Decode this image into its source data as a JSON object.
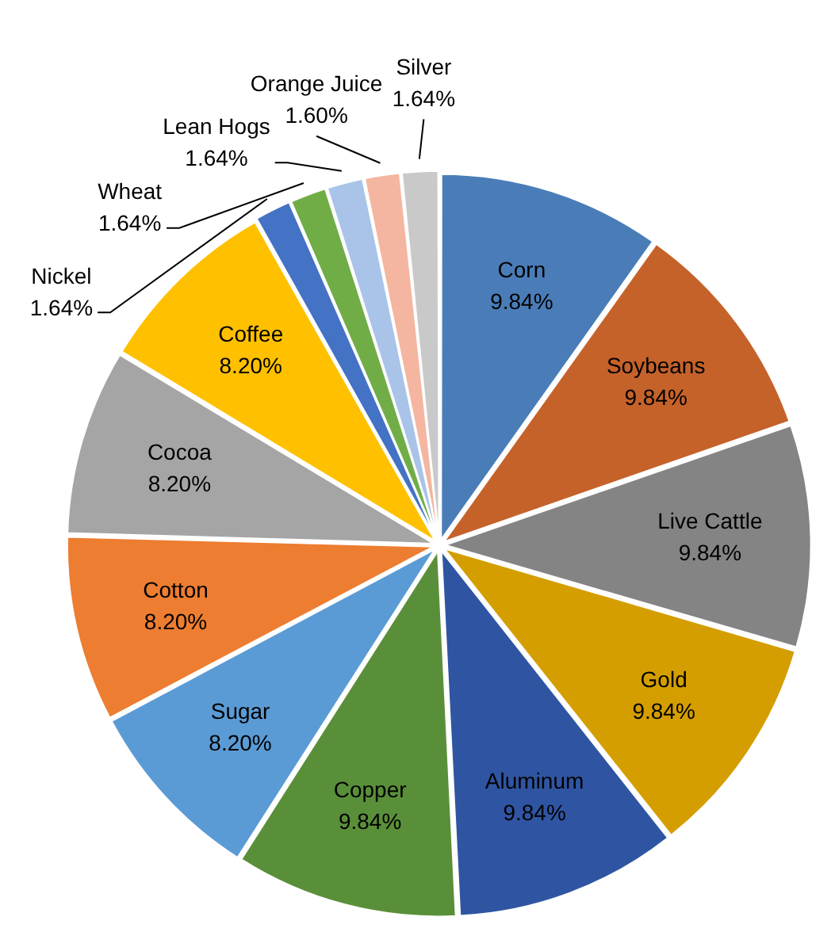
{
  "chart_data": {
    "type": "pie",
    "categories": [
      "Corn",
      "Soybeans",
      "Live Cattle",
      "Gold",
      "Aluminum",
      "Copper",
      "Sugar",
      "Cotton",
      "Cocoa",
      "Coffee",
      "Nickel",
      "Wheat",
      "Lean Hogs",
      "Orange Juice",
      "Silver"
    ],
    "values": [
      9.84,
      9.84,
      9.84,
      9.84,
      9.84,
      9.84,
      8.2,
      8.2,
      8.2,
      8.2,
      1.64,
      1.64,
      1.64,
      1.6,
      1.64
    ],
    "value_labels": [
      "9.84%",
      "9.84%",
      "9.84%",
      "9.84%",
      "9.84%",
      "9.84%",
      "8.20%",
      "8.20%",
      "8.20%",
      "8.20%",
      "1.64%",
      "1.64%",
      "1.64%",
      "1.60%",
      "1.64%"
    ],
    "colors": [
      "#4a7db8",
      "#c5622a",
      "#848484",
      "#d49e00",
      "#2f55a2",
      "#5a8f3a",
      "#5b9bd5",
      "#ed7d31",
      "#a5a5a5",
      "#ffc000",
      "#4472c4",
      "#70ad47",
      "#a9c4e8",
      "#f4b6a0",
      "#c9c9c9"
    ],
    "legend": false
  }
}
